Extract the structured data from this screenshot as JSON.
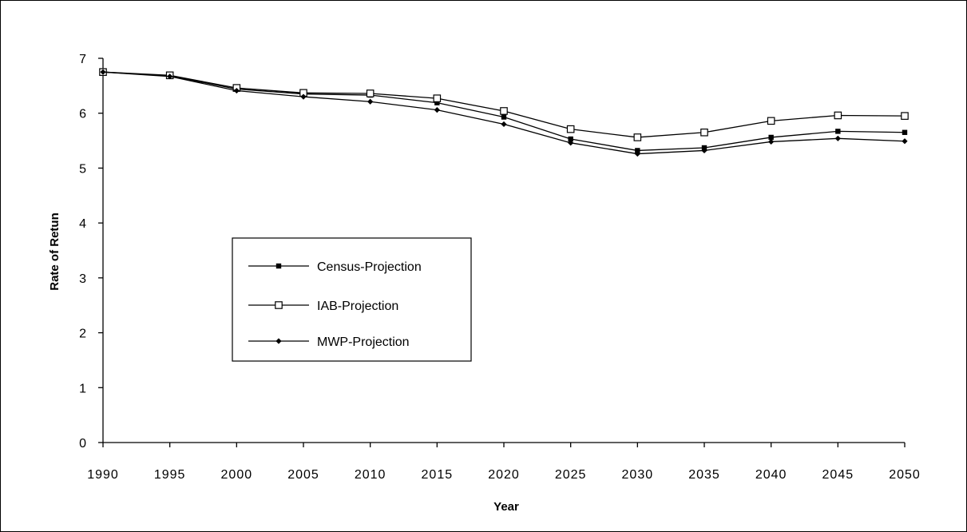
{
  "chart_data": {
    "type": "line",
    "title": "",
    "xlabel": "Year",
    "ylabel": "Rate of Retun",
    "x": [
      1990,
      1995,
      2000,
      2005,
      2010,
      2015,
      2020,
      2025,
      2030,
      2035,
      2040,
      2045,
      2050
    ],
    "xlim": [
      1990,
      2050
    ],
    "ylim": [
      0,
      7
    ],
    "yticks": [
      0,
      1,
      2,
      3,
      4,
      5,
      6,
      7
    ],
    "grid": false,
    "legend_position": "left-middle",
    "series": [
      {
        "name": "Census-Projection",
        "marker": "filled-square",
        "values": [
          6.75,
          6.68,
          6.44,
          6.35,
          6.33,
          6.19,
          5.93,
          5.53,
          5.32,
          5.37,
          5.56,
          5.67,
          5.65
        ]
      },
      {
        "name": "IAB-Projection",
        "marker": "open-square",
        "values": [
          6.75,
          6.69,
          6.46,
          6.37,
          6.36,
          6.27,
          6.04,
          5.71,
          5.56,
          5.65,
          5.86,
          5.96,
          5.95
        ]
      },
      {
        "name": "MWP-Projection",
        "marker": "filled-diamond",
        "values": [
          6.75,
          6.67,
          6.41,
          6.3,
          6.21,
          6.06,
          5.8,
          5.46,
          5.26,
          5.32,
          5.48,
          5.54,
          5.49
        ]
      }
    ],
    "colors": {
      "line": "#000000",
      "background": "#ffffff"
    }
  }
}
